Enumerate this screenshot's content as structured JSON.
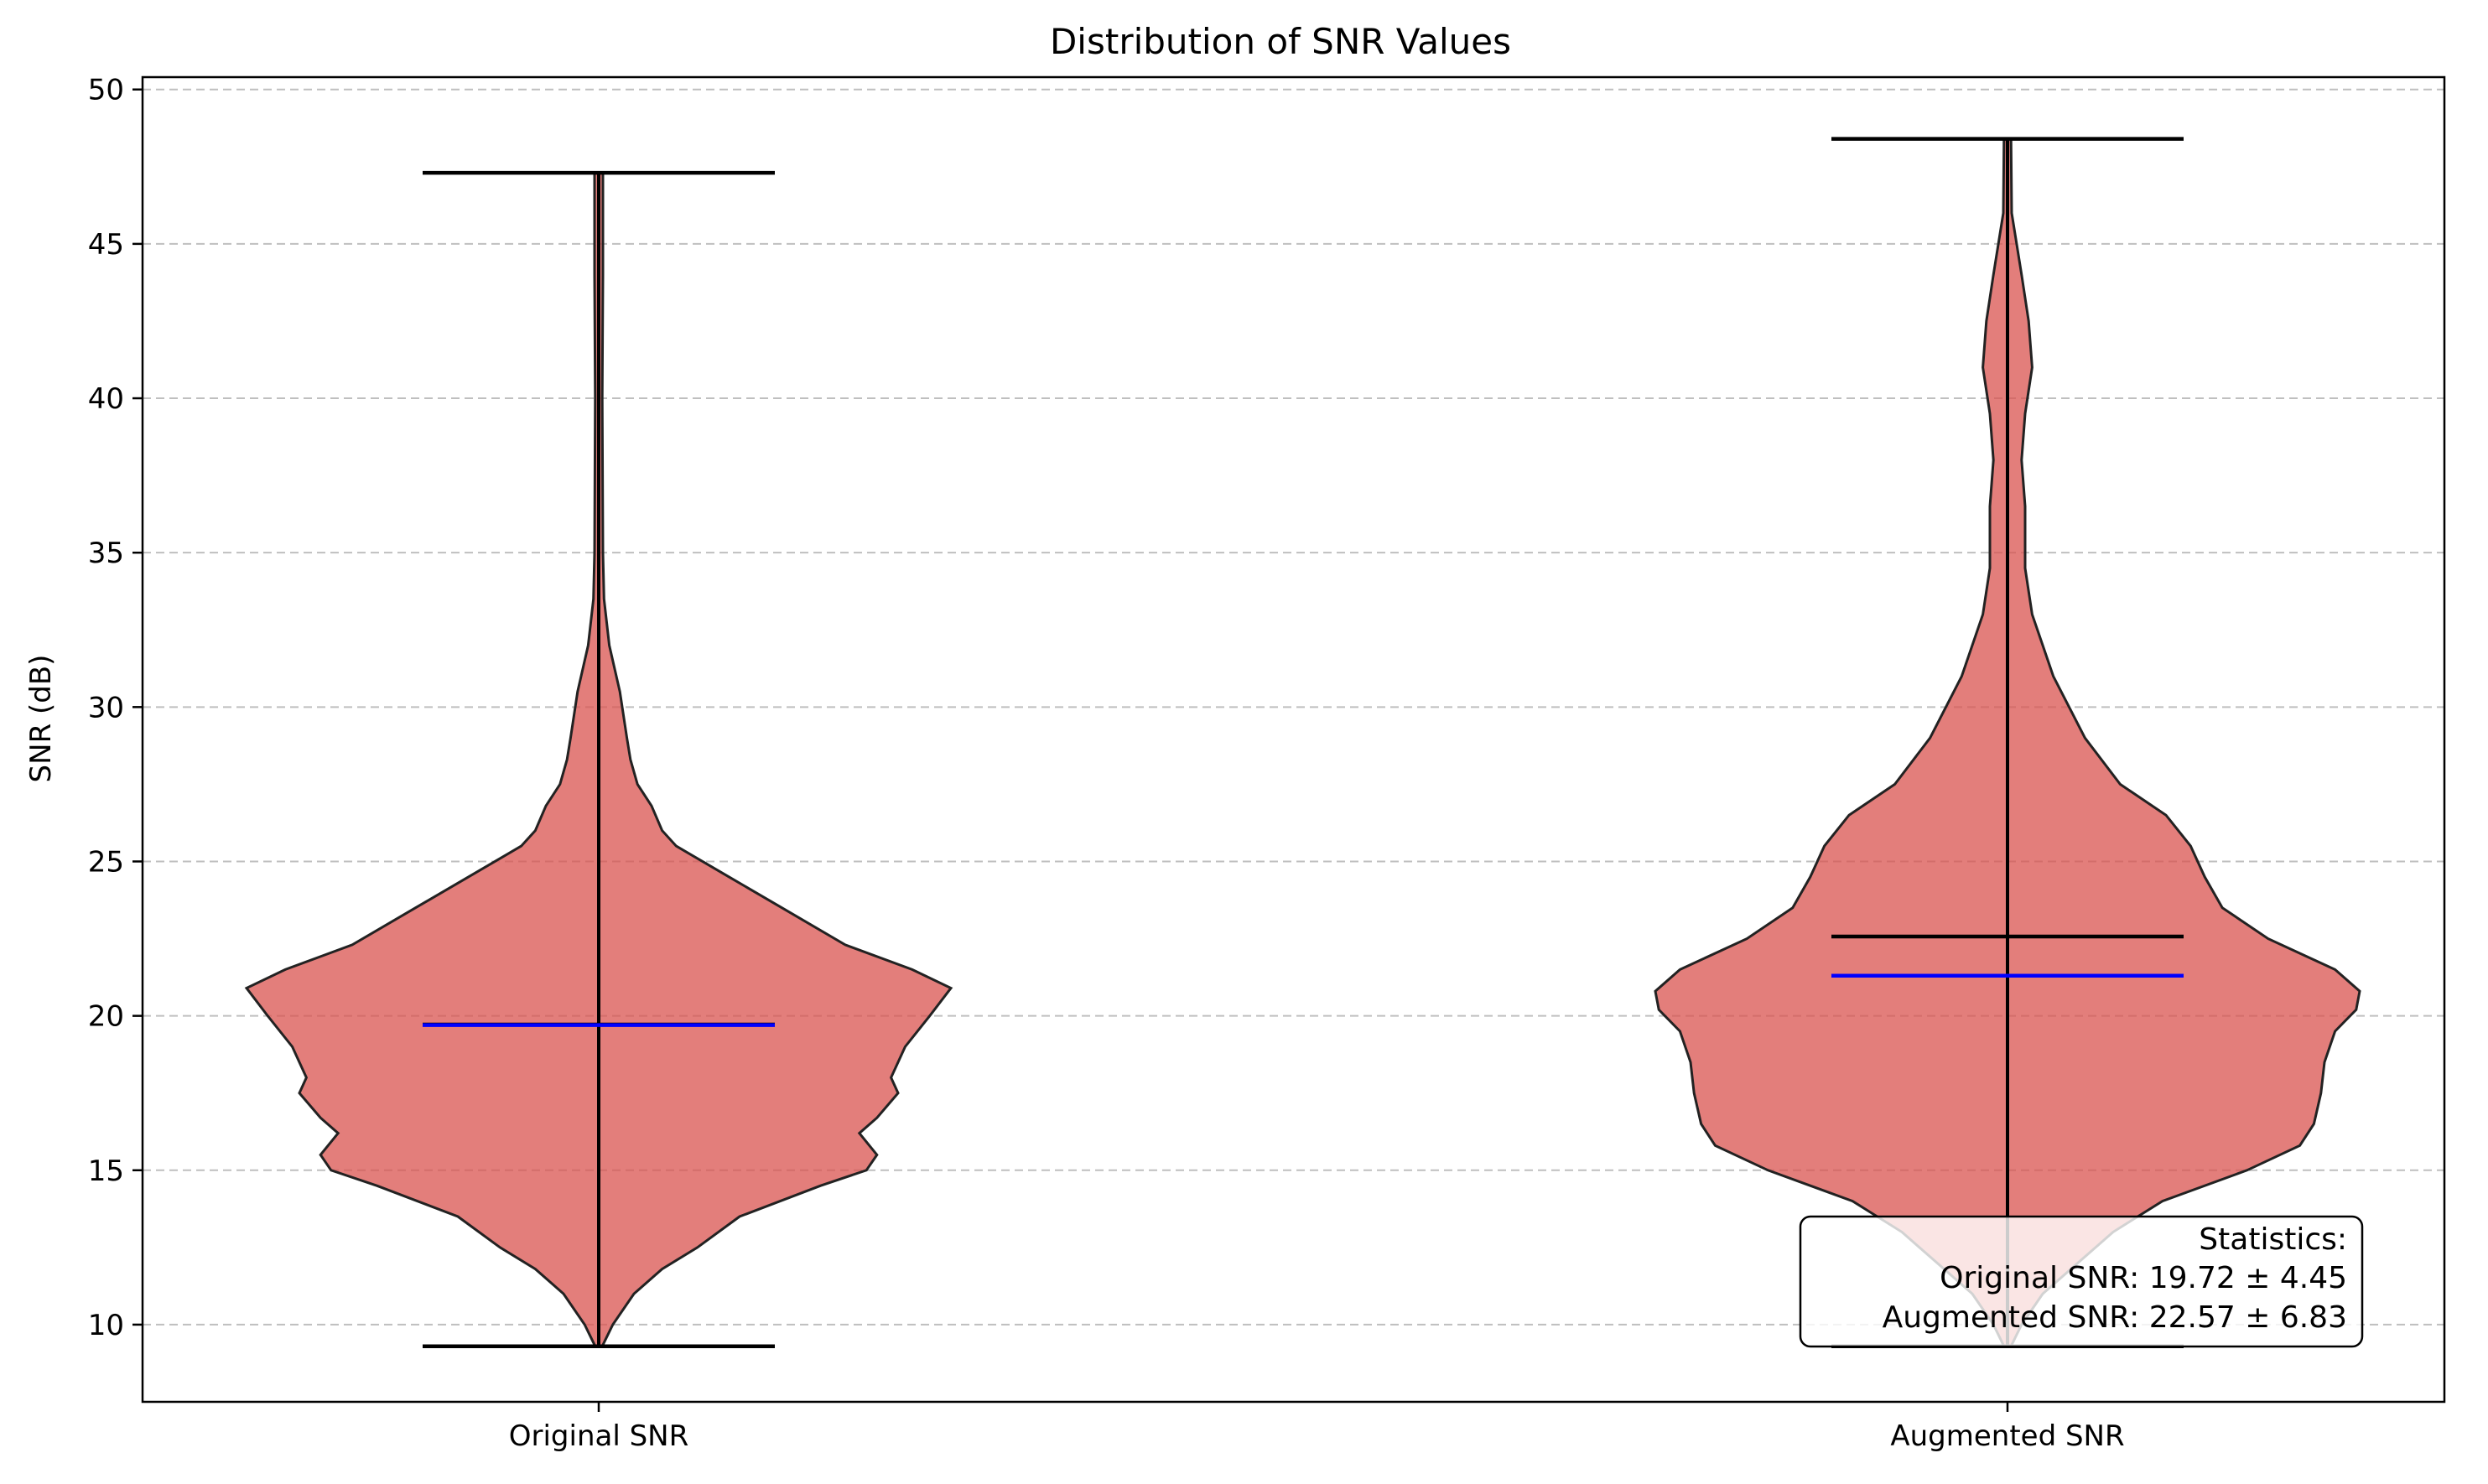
{
  "chart_data": {
    "type": "violin",
    "title": "Distribution of SNR Values",
    "xlabel": "",
    "ylabel": "SNR (dB)",
    "ylim": [
      7.5,
      50.4
    ],
    "yticks": [
      10,
      15,
      20,
      25,
      30,
      35,
      40,
      45,
      50
    ],
    "grid": {
      "y": true,
      "style": "dashed"
    },
    "colors": {
      "violin_fill": "#d9534f",
      "mean_line": "#0000ff",
      "median_line": "#000000"
    },
    "categories": [
      "Original SNR",
      "Augmented SNR"
    ],
    "series": [
      {
        "name": "Original SNR",
        "min": 9.3,
        "max": 47.3,
        "mean": 19.72,
        "std": 4.45,
        "median": 19.7,
        "density": [
          [
            9.3,
            0.01
          ],
          [
            10.0,
            0.04
          ],
          [
            11.0,
            0.1
          ],
          [
            11.8,
            0.18
          ],
          [
            12.5,
            0.28
          ],
          [
            13.5,
            0.4
          ],
          [
            14.5,
            0.63
          ],
          [
            15.0,
            0.76
          ],
          [
            15.5,
            0.79
          ],
          [
            16.2,
            0.74
          ],
          [
            16.7,
            0.79
          ],
          [
            17.5,
            0.85
          ],
          [
            18.0,
            0.83
          ],
          [
            19.0,
            0.87
          ],
          [
            20.0,
            0.94
          ],
          [
            20.9,
            1.0
          ],
          [
            21.5,
            0.89
          ],
          [
            22.3,
            0.7
          ],
          [
            23.5,
            0.52
          ],
          [
            24.5,
            0.37
          ],
          [
            25.5,
            0.22
          ],
          [
            26.0,
            0.18
          ],
          [
            26.8,
            0.15
          ],
          [
            27.5,
            0.11
          ],
          [
            28.3,
            0.09
          ],
          [
            29.0,
            0.08
          ],
          [
            30.5,
            0.06
          ],
          [
            32.0,
            0.03
          ],
          [
            33.5,
            0.015
          ],
          [
            35.0,
            0.012
          ],
          [
            40.0,
            0.01
          ],
          [
            44.0,
            0.012
          ],
          [
            47.3,
            0.012
          ]
        ]
      },
      {
        "name": "Augmented SNR",
        "min": 9.3,
        "max": 48.4,
        "mean": 22.57,
        "std": 6.83,
        "median": 21.3,
        "density": [
          [
            9.3,
            0.01
          ],
          [
            10.0,
            0.04
          ],
          [
            11.0,
            0.1
          ],
          [
            12.0,
            0.2
          ],
          [
            13.0,
            0.3
          ],
          [
            14.0,
            0.44
          ],
          [
            15.0,
            0.68
          ],
          [
            15.8,
            0.83
          ],
          [
            16.5,
            0.87
          ],
          [
            17.5,
            0.89
          ],
          [
            18.5,
            0.9
          ],
          [
            19.5,
            0.93
          ],
          [
            20.2,
            0.99
          ],
          [
            20.8,
            1.0
          ],
          [
            21.5,
            0.93
          ],
          [
            22.5,
            0.74
          ],
          [
            23.5,
            0.61
          ],
          [
            24.5,
            0.56
          ],
          [
            25.5,
            0.52
          ],
          [
            26.5,
            0.45
          ],
          [
            27.5,
            0.32
          ],
          [
            29.0,
            0.22
          ],
          [
            31.0,
            0.13
          ],
          [
            33.0,
            0.07
          ],
          [
            34.5,
            0.05
          ],
          [
            36.5,
            0.05
          ],
          [
            38.0,
            0.04
          ],
          [
            39.5,
            0.05
          ],
          [
            41.0,
            0.07
          ],
          [
            42.5,
            0.06
          ],
          [
            44.0,
            0.04
          ],
          [
            46.0,
            0.012
          ],
          [
            48.4,
            0.01
          ]
        ]
      }
    ],
    "stats_box": {
      "header": "Statistics:",
      "line1": "Original SNR: 19.72 ± 4.45",
      "line2": "Augmented SNR: 22.57 ± 6.83",
      "placement": "lower-right"
    }
  }
}
